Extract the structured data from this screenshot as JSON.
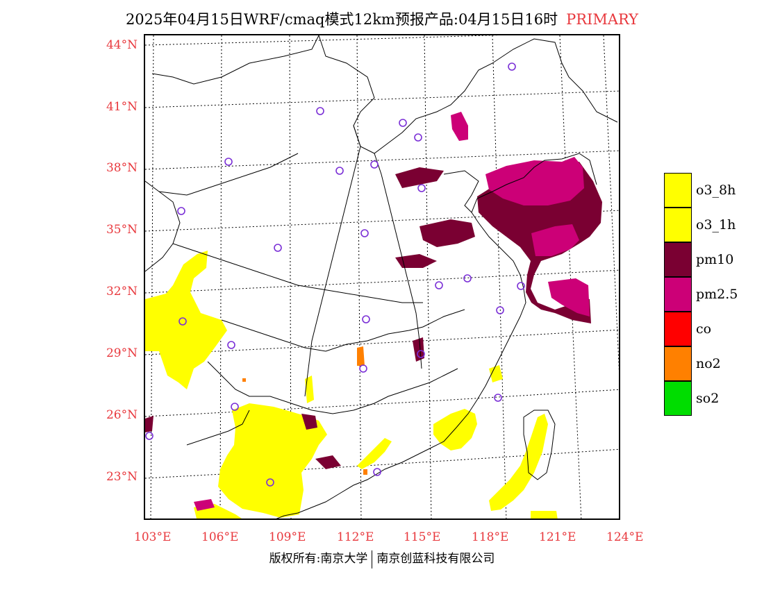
{
  "title": {
    "main": "2025年04月15日WRF/cmaq模式12km预报产品:04月15日16时",
    "tag": "PRIMARY"
  },
  "map": {
    "lat_labels": [
      "44°N",
      "41°N",
      "38°N",
      "35°N",
      "32°N",
      "29°N",
      "26°N",
      "23°N"
    ],
    "lon_labels": [
      "103°E",
      "106°E",
      "109°E",
      "112°E",
      "115°E",
      "118°E",
      "121°E",
      "124°E"
    ],
    "extent": {
      "lon_min": 102.7,
      "lon_max": 124.0,
      "lat_min": 21.0,
      "lat_max": 44.5
    }
  },
  "legend": {
    "items": [
      {
        "label": "o3_8h",
        "color": "#ffff00"
      },
      {
        "label": "o3_1h",
        "color": "#ffff00"
      },
      {
        "label": "pm10",
        "color": "#7a0032"
      },
      {
        "label": "pm2.5",
        "color": "#cc0077"
      },
      {
        "label": "co",
        "color": "#ff0000"
      },
      {
        "label": "no2",
        "color": "#ff8000"
      },
      {
        "label": "so2",
        "color": "#00dd00"
      }
    ]
  },
  "footer": {
    "left": "版权所有:南京大学",
    "right": "南京创蓝科技有限公司"
  },
  "colors": {
    "label_red": "#e8383d",
    "station_circle": "#7a2fd6"
  }
}
